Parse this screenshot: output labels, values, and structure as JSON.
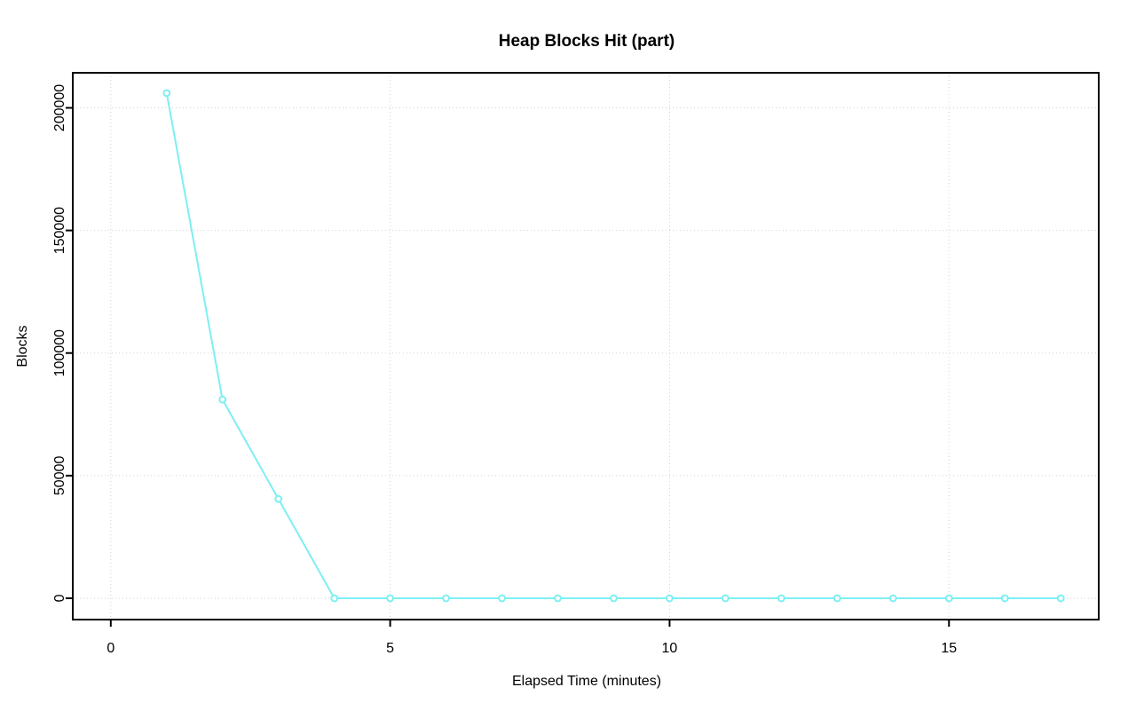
{
  "chart_data": {
    "type": "line",
    "title": "Heap Blocks Hit (part)",
    "xlabel": "Elapsed Time (minutes)",
    "ylabel": "Blocks",
    "x": [
      1,
      2,
      3,
      4,
      5,
      6,
      7,
      8,
      9,
      10,
      11,
      12,
      13,
      14,
      15,
      16,
      17
    ],
    "values": [
      206000,
      81000,
      40500,
      0,
      0,
      0,
      0,
      0,
      0,
      0,
      0,
      0,
      0,
      0,
      0,
      0,
      0
    ],
    "xlim": [
      -0.68,
      17.68
    ],
    "ylim": [
      -8700,
      214300
    ],
    "x_ticks": [
      0,
      5,
      10,
      15
    ],
    "y_ticks": [
      0,
      50000,
      100000,
      150000,
      200000
    ],
    "grid": true,
    "legend": "none",
    "marker": "open-circle",
    "colors": {
      "series": "#7deff2",
      "grid": "#d2d2d2",
      "axis": "#000000",
      "background": "#ffffff"
    }
  }
}
